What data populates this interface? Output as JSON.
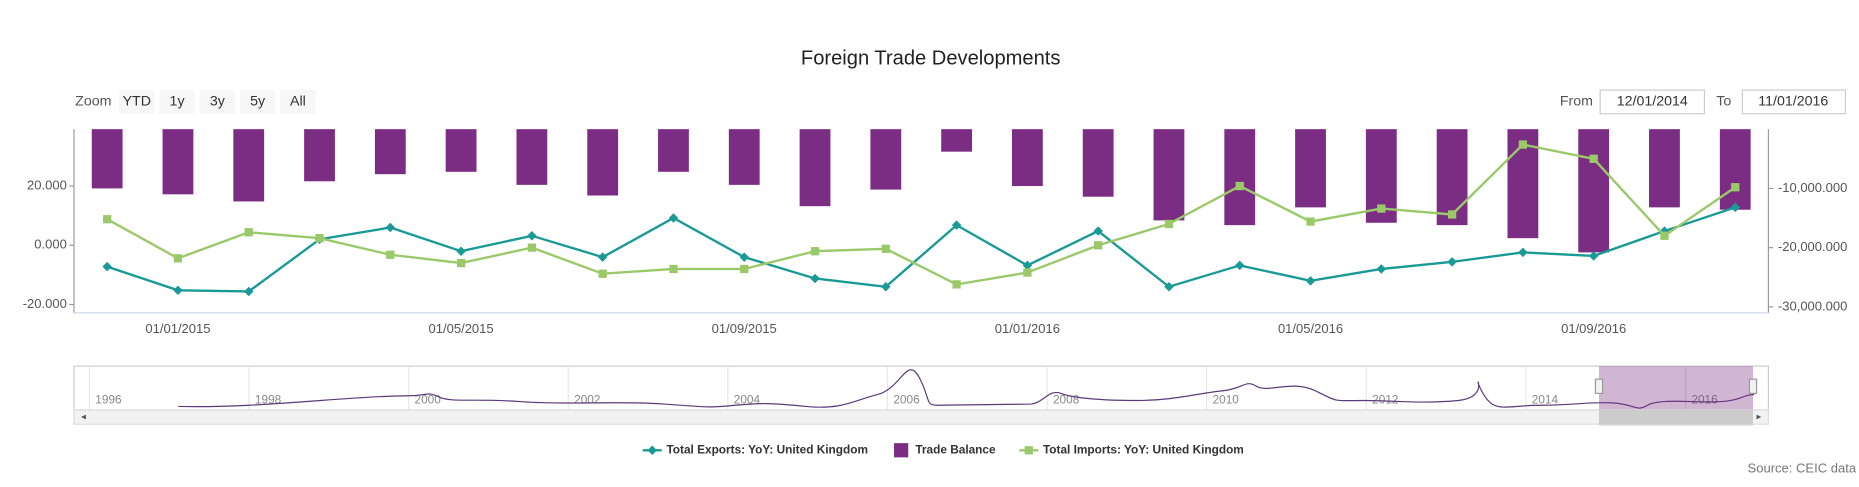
{
  "toolbar": {
    "zoom_label": "Zoom",
    "zoom_buttons": [
      "YTD",
      "1y",
      "3y",
      "5y",
      "All"
    ],
    "from_label": "From",
    "from_value": "12/01/2014",
    "to_label": "To",
    "to_value": "11/01/2016"
  },
  "chart_data": {
    "type": "combo",
    "title": "Foreign Trade Developments",
    "categories": [
      null,
      "01/01/2015",
      null,
      null,
      null,
      "01/05/2015",
      null,
      null,
      null,
      "01/09/2015",
      null,
      null,
      null,
      "01/01/2016",
      null,
      null,
      null,
      "01/05/2016",
      null,
      null,
      null,
      "01/09/2016",
      null,
      null
    ],
    "series": [
      {
        "name": "Total Exports: YoY: United Kingdom",
        "type": "line",
        "marker": "diamond",
        "color": "#1a9a96",
        "axis": "y",
        "values": [
          -7.2,
          -15.2,
          -15.6,
          2,
          6,
          -2,
          3.2,
          -4,
          9.2,
          -4,
          -11.2,
          -14,
          6.8,
          -6.8,
          4.8,
          -14,
          -6.8,
          -12,
          -8,
          -5.6,
          -2.4,
          -3.6,
          4.8,
          12.8
        ]
      },
      {
        "name": "Trade Balance",
        "type": "bar",
        "color": "#7b2d84",
        "axis": "y2",
        "values": [
          -10000,
          -11000,
          -12200,
          -8800,
          -7600,
          -7200,
          -9400,
          -11200,
          -7200,
          -9400,
          -13000,
          -10200,
          -3800,
          -9600,
          -11400,
          -15400,
          -16200,
          -13200,
          -15800,
          -16200,
          -18400,
          -20800,
          -13200,
          -13600
        ]
      },
      {
        "name": "Total Imports: YoY: United Kingdom",
        "type": "line",
        "marker": "square",
        "color": "#9bc96a",
        "axis": "y",
        "values": [
          8.8,
          -4.4,
          4.4,
          2.4,
          -3.2,
          -6,
          -0.8,
          -9.6,
          -8,
          -8,
          -2,
          -1.2,
          -13.2,
          -9.2,
          0,
          7.2,
          20,
          8,
          12.4,
          10.4,
          34,
          29.2,
          3.2,
          19.6
        ]
      }
    ],
    "ylim": [
      -22.8,
      39.2
    ],
    "yticks": [
      {
        "value": 20,
        "label": "20.000"
      },
      {
        "value": 0,
        "label": "0.000"
      },
      {
        "value": -20,
        "label": "-20.000"
      }
    ],
    "y2lim": [
      -31000,
      0
    ],
    "y2ticks": [
      {
        "value": -10000,
        "label": "-10,000.000"
      },
      {
        "value": -20000,
        "label": "-20,000.000"
      },
      {
        "value": -30000,
        "label": "-30,000.000"
      }
    ]
  },
  "navigator": {
    "years": [
      "1996",
      "1998",
      "2000",
      "2002",
      "2004",
      "2006",
      "2008",
      "2010",
      "2012",
      "2014",
      "2016"
    ]
  },
  "source": "Source: CEIC data"
}
